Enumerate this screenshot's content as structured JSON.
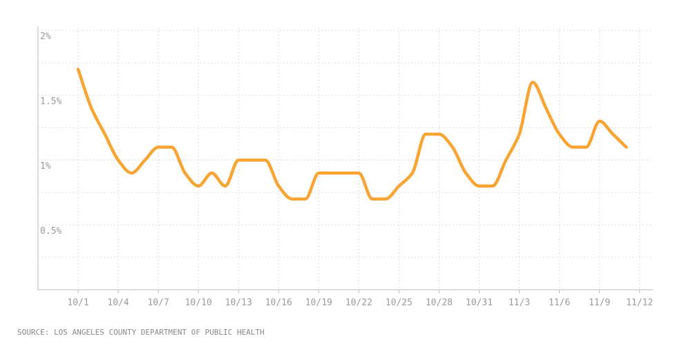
{
  "chart_data": {
    "type": "line",
    "x": [
      "10/1",
      "10/2",
      "10/3",
      "10/4",
      "10/5",
      "10/6",
      "10/7",
      "10/8",
      "10/9",
      "10/10",
      "10/11",
      "10/12",
      "10/13",
      "10/14",
      "10/15",
      "10/16",
      "10/17",
      "10/18",
      "10/19",
      "10/20",
      "10/21",
      "10/22",
      "10/23",
      "10/24",
      "10/25",
      "10/26",
      "10/27",
      "10/28",
      "10/29",
      "10/30",
      "10/31",
      "11/1",
      "11/2",
      "11/3",
      "11/4",
      "11/5",
      "11/6",
      "11/7",
      "11/8",
      "11/9",
      "11/10",
      "11/11"
    ],
    "values": [
      1.7,
      1.4,
      1.2,
      1.0,
      0.9,
      1.0,
      1.1,
      1.1,
      0.9,
      0.8,
      0.9,
      0.8,
      1.0,
      1.0,
      1.0,
      0.8,
      0.7,
      0.7,
      0.9,
      0.9,
      0.9,
      0.9,
      0.7,
      0.7,
      0.8,
      0.9,
      1.2,
      1.2,
      1.1,
      0.9,
      0.8,
      0.8,
      1.0,
      1.2,
      1.6,
      1.4,
      1.2,
      1.1,
      1.1,
      1.3,
      1.2,
      1.1
    ],
    "color": "#f7a433",
    "xlim": [
      "9/28",
      "11/13"
    ],
    "xticks": [
      "10/1",
      "10/4",
      "10/7",
      "10/10",
      "10/13",
      "10/16",
      "10/19",
      "10/22",
      "10/25",
      "10/28",
      "10/31",
      "11/3",
      "11/6",
      "11/9",
      "11/12"
    ],
    "ylim": [
      0,
      2
    ],
    "yticks": [
      {
        "value": 0.5,
        "label": "0.5%"
      },
      {
        "value": 1,
        "label": "1%"
      },
      {
        "value": 1.5,
        "label": "1.5%"
      },
      {
        "value": 2,
        "label": "2%"
      }
    ],
    "minor_yticks": [
      0.25,
      0.75,
      1.25,
      1.75
    ],
    "grid": true,
    "source": "SOURCE: LOS ANGELES COUNTY DEPARTMENT OF PUBLIC HEALTH"
  }
}
